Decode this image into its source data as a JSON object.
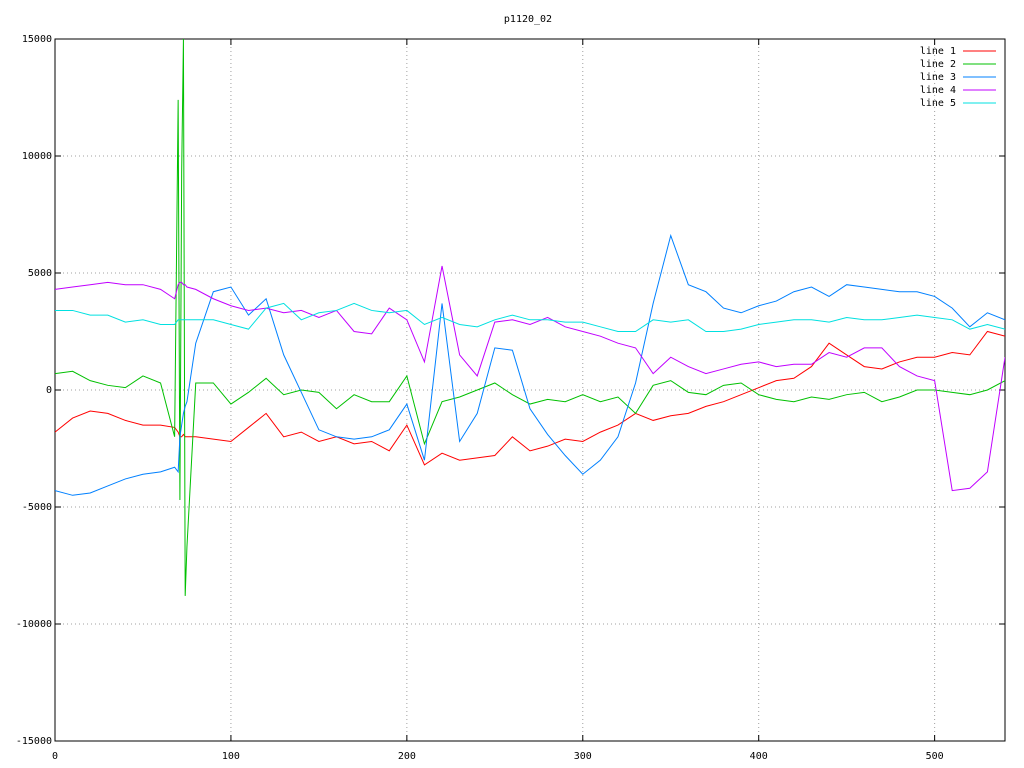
{
  "chart_data": {
    "type": "line",
    "title": "p1120_02",
    "x": [
      0,
      10,
      20,
      30,
      40,
      50,
      60,
      68,
      70,
      71,
      72,
      73,
      74,
      75,
      80,
      90,
      100,
      110,
      120,
      130,
      140,
      150,
      160,
      170,
      180,
      190,
      200,
      210,
      220,
      230,
      240,
      250,
      260,
      270,
      280,
      290,
      300,
      310,
      320,
      330,
      340,
      350,
      360,
      370,
      380,
      390,
      400,
      410,
      420,
      430,
      440,
      450,
      460,
      470,
      480,
      490,
      500,
      510,
      520,
      530,
      540
    ],
    "series": [
      {
        "name": "line 1",
        "color": "#ff0000",
        "values": [
          -1800,
          -1200,
          -900,
          -1000,
          -1300,
          -1500,
          -1500,
          -1600,
          -1800,
          -2000,
          -2000,
          -1900,
          -2000,
          -2000,
          -2000,
          -2100,
          -2200,
          -1600,
          -1000,
          -2000,
          -1800,
          -2200,
          -2000,
          -2300,
          -2200,
          -2600,
          -1500,
          -3200,
          -2700,
          -3000,
          -2900,
          -2800,
          -2000,
          -2600,
          -2400,
          -2100,
          -2200,
          -1800,
          -1500,
          -1000,
          -1300,
          -1100,
          -1000,
          -700,
          -500,
          -200,
          100,
          400,
          500,
          1000,
          2000,
          1500,
          1000,
          900,
          1200,
          1400,
          1400,
          1600,
          1500,
          2500,
          2300
        ]
      },
      {
        "name": "line 2",
        "color": "#00c000",
        "values": [
          700,
          800,
          400,
          200,
          100,
          600,
          300,
          -2000,
          12400,
          -4700,
          9300,
          15000,
          -8800,
          -6700,
          300,
          300,
          -600,
          -100,
          500,
          -200,
          0,
          -100,
          -800,
          -200,
          -500,
          -500,
          600,
          -2300,
          -500,
          -300,
          0,
          300,
          -200,
          -600,
          -400,
          -500,
          -200,
          -500,
          -300,
          -1000,
          200,
          400,
          -100,
          -200,
          200,
          300,
          -200,
          -400,
          -500,
          -300,
          -400,
          -200,
          -100,
          -500,
          -300,
          0,
          0,
          -100,
          -200,
          0,
          400
        ]
      },
      {
        "name": "line 3",
        "color": "#0080ff",
        "values": [
          -4300,
          -4500,
          -4400,
          -4100,
          -3800,
          -3600,
          -3500,
          -3300,
          -3500,
          -2000,
          -1500,
          -1000,
          -700,
          -500,
          2000,
          4200,
          4400,
          3200,
          3900,
          1500,
          -100,
          -1700,
          -2000,
          -2100,
          -2000,
          -1700,
          -600,
          -3000,
          3700,
          -2200,
          -1000,
          1800,
          1700,
          -800,
          -1900,
          -2800,
          -3600,
          -3000,
          -2000,
          300,
          3700,
          6600,
          4500,
          4200,
          3500,
          3300,
          3600,
          3800,
          4200,
          4400,
          4000,
          4500,
          4400,
          4300,
          4200,
          4200,
          4000,
          3500,
          2700,
          3300,
          3000
        ]
      },
      {
        "name": "line 4",
        "color": "#c000ff",
        "values": [
          4300,
          4400,
          4500,
          4600,
          4500,
          4500,
          4300,
          3900,
          4500,
          4600,
          4600,
          4500,
          4500,
          4400,
          4300,
          3900,
          3600,
          3400,
          3500,
          3300,
          3400,
          3100,
          3400,
          2500,
          2400,
          3500,
          3000,
          1200,
          5300,
          1500,
          600,
          2900,
          3000,
          2800,
          3100,
          2700,
          2500,
          2300,
          2000,
          1800,
          700,
          1400,
          1000,
          700,
          900,
          1100,
          1200,
          1000,
          1100,
          1100,
          1600,
          1400,
          1800,
          1800,
          1000,
          600,
          400,
          -4300,
          -4200,
          -3500,
          1400
        ]
      },
      {
        "name": "line 5",
        "color": "#00e0e0",
        "values": [
          3400,
          3400,
          3200,
          3200,
          2900,
          3000,
          2800,
          2800,
          3000,
          3000,
          3000,
          3000,
          3000,
          3000,
          3000,
          3000,
          2800,
          2600,
          3500,
          3700,
          3000,
          3300,
          3400,
          3700,
          3400,
          3300,
          3400,
          2800,
          3100,
          2800,
          2700,
          3000,
          3200,
          3000,
          3000,
          2900,
          2900,
          2700,
          2500,
          2500,
          3000,
          2900,
          3000,
          2500,
          2500,
          2600,
          2800,
          2900,
          3000,
          3000,
          2900,
          3100,
          3000,
          3000,
          3100,
          3200,
          3100,
          3000,
          2600,
          2800,
          2600
        ]
      }
    ],
    "xlim": [
      0,
      540
    ],
    "ylim": [
      -15000,
      15000
    ],
    "xticks": [
      0,
      100,
      200,
      300,
      400,
      500
    ],
    "yticks": [
      -15000,
      -10000,
      -5000,
      0,
      5000,
      10000,
      15000
    ],
    "grid": true,
    "legend": "top-right"
  }
}
